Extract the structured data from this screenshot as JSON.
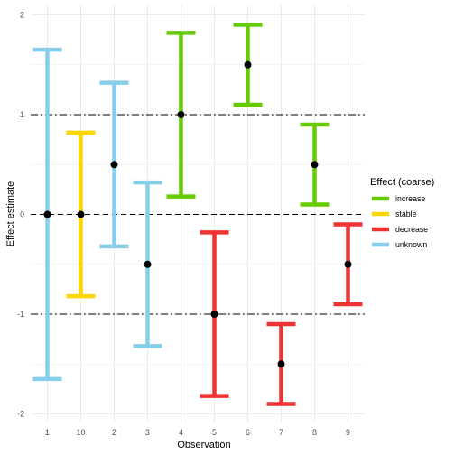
{
  "chart_data": {
    "type": "errorbar",
    "xlabel": "Observation",
    "ylabel": "Effect estimate",
    "categories": [
      "1",
      "10",
      "2",
      "3",
      "4",
      "5",
      "6",
      "7",
      "8",
      "9"
    ],
    "ylim": [
      -2.1,
      2.1
    ],
    "yticks": [
      -2,
      -1,
      0,
      1,
      2
    ],
    "ytick_labels": [
      "-2",
      "-1",
      "0",
      "1",
      "2"
    ],
    "reference_lines": [
      {
        "y": 0,
        "style": "dashed"
      },
      {
        "y": 1,
        "style": "dotdash"
      },
      {
        "y": -1,
        "style": "dotdash"
      }
    ],
    "grid": true,
    "legend": {
      "title": "Effect (coarse)",
      "placement": "right",
      "entries": [
        {
          "label": "increase",
          "color": "#66CC00"
        },
        {
          "label": "stable",
          "color": "#FFD700"
        },
        {
          "label": "decrease",
          "color": "#EE3333"
        },
        {
          "label": "unknown",
          "color": "#87CEEB"
        }
      ]
    },
    "points": [
      {
        "x": "1",
        "estimate": 0.0,
        "lower": -1.65,
        "upper": 1.65,
        "group": "unknown"
      },
      {
        "x": "10",
        "estimate": 0.0,
        "lower": -0.82,
        "upper": 0.82,
        "group": "stable"
      },
      {
        "x": "2",
        "estimate": 0.5,
        "lower": -0.32,
        "upper": 1.32,
        "group": "unknown"
      },
      {
        "x": "3",
        "estimate": -0.5,
        "lower": -1.32,
        "upper": 0.32,
        "group": "unknown"
      },
      {
        "x": "4",
        "estimate": 1.0,
        "lower": 0.18,
        "upper": 1.82,
        "group": "increase"
      },
      {
        "x": "5",
        "estimate": -1.0,
        "lower": -1.82,
        "upper": -0.18,
        "group": "decrease"
      },
      {
        "x": "6",
        "estimate": 1.5,
        "lower": 1.1,
        "upper": 1.9,
        "group": "increase"
      },
      {
        "x": "7",
        "estimate": -1.5,
        "lower": -1.9,
        "upper": -1.1,
        "group": "decrease"
      },
      {
        "x": "8",
        "estimate": 0.5,
        "lower": 0.1,
        "upper": 0.9,
        "group": "increase"
      },
      {
        "x": "9",
        "estimate": -0.5,
        "lower": -0.9,
        "upper": -0.1,
        "group": "decrease"
      }
    ]
  }
}
